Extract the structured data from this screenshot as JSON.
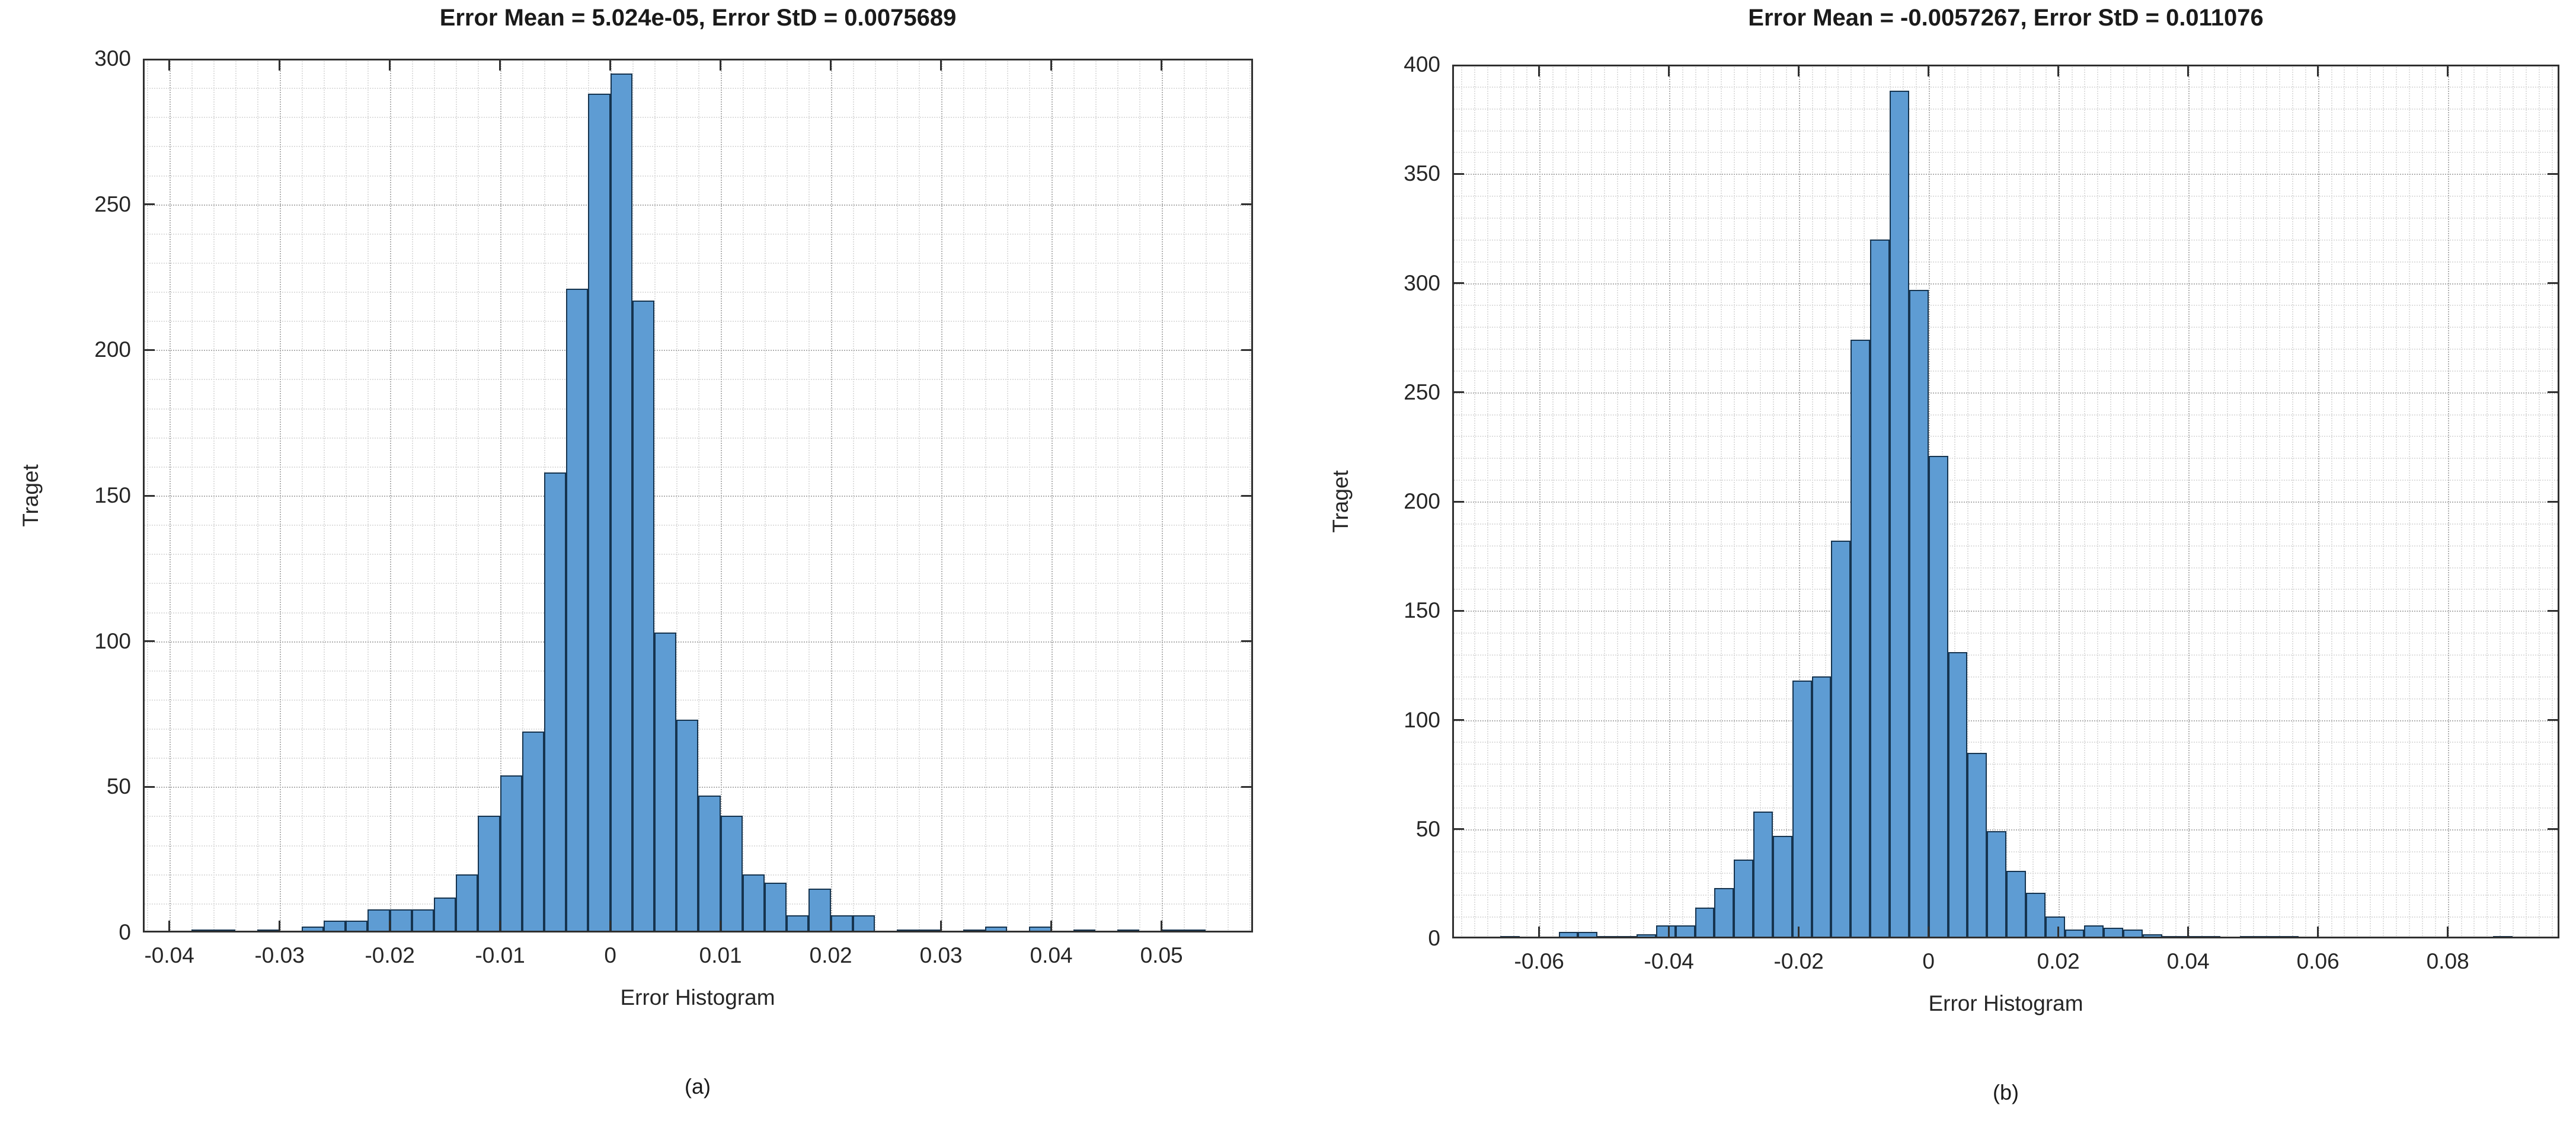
{
  "figure": {
    "background": "#ffffff",
    "captions": {
      "a": "(a)",
      "b": "(b)"
    }
  },
  "colors": {
    "bar_fill": "#5E9CD3",
    "bar_edge": "#16344F",
    "axis_box": "#303030",
    "grid_minor": "#dedede",
    "grid_major": "#b0b0b0",
    "text": "#262626"
  },
  "chart_data": [
    {
      "type": "bar",
      "subtype": "histogram",
      "title": "Error Mean = 5.024e-05, Error StD = 0.0075689",
      "xlabel": "Error Histogram",
      "ylabel": "Traget",
      "caption": "(a)",
      "legend": null,
      "grid": "on (dotted major + minor)",
      "xlim": [
        -0.0424,
        0.0583
      ],
      "ylim": [
        0,
        300
      ],
      "bin_width": 0.002,
      "xticks": [
        -0.04,
        -0.03,
        -0.02,
        -0.01,
        0,
        0.01,
        0.02,
        0.03,
        0.04,
        0.05
      ],
      "xtick_labels": [
        "-0.04",
        "-0.03",
        "-0.02",
        "-0.01",
        "0",
        "0.01",
        "0.02",
        "0.03",
        "0.04",
        "0.05"
      ],
      "yticks": [
        0,
        50,
        100,
        150,
        200,
        250,
        300
      ],
      "ytick_labels": [
        "0",
        "50",
        "100",
        "150",
        "200",
        "250",
        "300"
      ],
      "bins": [
        [
          -0.037,
          1
        ],
        [
          -0.035,
          1
        ],
        [
          -0.031,
          1
        ],
        [
          -0.027,
          2
        ],
        [
          -0.025,
          4
        ],
        [
          -0.023,
          4
        ],
        [
          -0.021,
          8
        ],
        [
          -0.019,
          8
        ],
        [
          -0.017,
          8
        ],
        [
          -0.015,
          12
        ],
        [
          -0.013,
          20
        ],
        [
          -0.011,
          40
        ],
        [
          -0.009,
          54
        ],
        [
          -0.007,
          69
        ],
        [
          -0.005,
          158
        ],
        [
          -0.003,
          221
        ],
        [
          -0.001,
          288
        ],
        [
          0.001,
          295
        ],
        [
          0.003,
          217
        ],
        [
          0.005,
          103
        ],
        [
          0.007,
          73
        ],
        [
          0.009,
          47
        ],
        [
          0.011,
          40
        ],
        [
          0.013,
          20
        ],
        [
          0.015,
          17
        ],
        [
          0.017,
          6
        ],
        [
          0.019,
          15
        ],
        [
          0.021,
          6
        ],
        [
          0.023,
          6
        ],
        [
          0.027,
          1
        ],
        [
          0.029,
          1
        ],
        [
          0.033,
          1
        ],
        [
          0.035,
          2
        ],
        [
          0.039,
          2
        ],
        [
          0.043,
          1
        ],
        [
          0.047,
          1
        ],
        [
          0.051,
          1
        ],
        [
          0.053,
          1
        ]
      ]
    },
    {
      "type": "bar",
      "subtype": "histogram",
      "title": "Error Mean = -0.0057267, Error StD = 0.011076",
      "xlabel": "Error Histogram",
      "ylabel": "Traget",
      "caption": "(b)",
      "legend": null,
      "grid": "on (dotted major + minor)",
      "xlim": [
        -0.0734,
        0.0972
      ],
      "ylim": [
        0,
        400
      ],
      "bin_width": 0.003,
      "xticks": [
        -0.06,
        -0.04,
        -0.02,
        0,
        0.02,
        0.04,
        0.06,
        0.08
      ],
      "xtick_labels": [
        "-0.06",
        "-0.04",
        "-0.02",
        "0",
        "0.02",
        "0.04",
        "0.06",
        "0.08"
      ],
      "yticks": [
        0,
        50,
        100,
        150,
        200,
        250,
        300,
        350,
        400
      ],
      "ytick_labels": [
        "0",
        "50",
        "100",
        "150",
        "200",
        "250",
        "300",
        "350",
        "400"
      ],
      "bins": [
        [
          -0.0645,
          1
        ],
        [
          -0.0555,
          3
        ],
        [
          -0.0525,
          3
        ],
        [
          -0.0495,
          1
        ],
        [
          -0.0465,
          1
        ],
        [
          -0.0435,
          2
        ],
        [
          -0.0405,
          6
        ],
        [
          -0.0375,
          6
        ],
        [
          -0.0345,
          14
        ],
        [
          -0.0315,
          23
        ],
        [
          -0.0285,
          36
        ],
        [
          -0.0255,
          58
        ],
        [
          -0.0225,
          47
        ],
        [
          -0.0195,
          118
        ],
        [
          -0.0165,
          120
        ],
        [
          -0.0135,
          182
        ],
        [
          -0.0105,
          274
        ],
        [
          -0.0075,
          320
        ],
        [
          -0.0045,
          388
        ],
        [
          -0.0015,
          297
        ],
        [
          0.0015,
          221
        ],
        [
          0.0045,
          131
        ],
        [
          0.0075,
          85
        ],
        [
          0.0105,
          49
        ],
        [
          0.0135,
          31
        ],
        [
          0.0165,
          21
        ],
        [
          0.0195,
          10
        ],
        [
          0.0225,
          4
        ],
        [
          0.0255,
          6
        ],
        [
          0.0285,
          5
        ],
        [
          0.0315,
          4
        ],
        [
          0.0345,
          2
        ],
        [
          0.0375,
          1
        ],
        [
          0.0405,
          1
        ],
        [
          0.0435,
          1
        ],
        [
          0.0495,
          1
        ],
        [
          0.0525,
          1
        ],
        [
          0.0555,
          1
        ],
        [
          0.0885,
          1
        ]
      ]
    }
  ]
}
